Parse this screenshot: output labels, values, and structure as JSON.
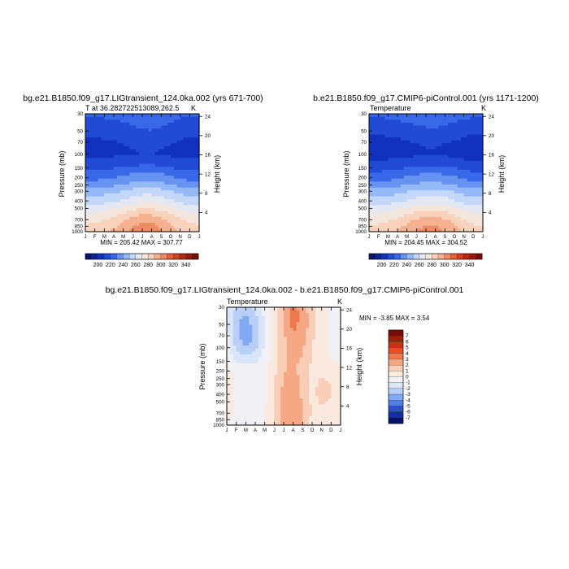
{
  "panels": [
    {
      "title": "bg.e21.B1850.f09_g17.LIGtransient_124.0ka.002 (yrs 671-700)",
      "var_label": "T at 36.282722513089,262.5",
      "unit": "K",
      "left_axis_label": "Pressure (mb)",
      "right_axis_label": "Height (km)",
      "minmax_text": "MIN = 205.42  MAX = 307.77",
      "colorbar_ticks": [
        "200",
        "220",
        "240",
        "260",
        "280",
        "300",
        "320",
        "340"
      ]
    },
    {
      "title": "b.e21.B1850.f09_g17.CMIP6-piControl.001 (yrs 1171-1200)",
      "var_label": "Temperature",
      "unit": "K",
      "left_axis_label": "Pressure (mb)",
      "right_axis_label": "Height (km)",
      "minmax_text": "MIN = 204.45  MAX = 304.52",
      "colorbar_ticks": [
        "200",
        "220",
        "240",
        "260",
        "280",
        "300",
        "320",
        "340"
      ]
    },
    {
      "title": "bg.e21.B1850.f09_g17.LIGtransient_124.0ka.002 - b.e21.B1850.f09_g17.CMIP6-piControl.001",
      "var_label": "Temperature",
      "unit": "K",
      "left_axis_label": "Pressure (mb)",
      "right_axis_label": "Height (km)",
      "minmax_text": "MIN =   -3.85  MAX =    3.54",
      "colorbar_ticks": [
        "7",
        "6",
        "5",
        "4",
        "3",
        "2",
        "1",
        "0",
        "-1",
        "-2",
        "-3",
        "-4",
        "-5",
        "-6",
        "-7"
      ]
    }
  ],
  "chart_data": [
    {
      "type": "heatmap",
      "title": "bg.e21.B1850.f09_g17.LIGtransient_124.0ka.002 (yrs 671-700)",
      "x_categories": [
        "J",
        "F",
        "M",
        "A",
        "M",
        "J",
        "J",
        "A",
        "S",
        "O",
        "N",
        "D",
        "J"
      ],
      "pressure_levels_mb": [
        30,
        50,
        70,
        100,
        150,
        200,
        250,
        300,
        400,
        500,
        700,
        850,
        1000
      ],
      "height_ticks_km": [
        24,
        20,
        16,
        12,
        8,
        4
      ],
      "min": 205.42,
      "max": 307.77,
      "colorbar": [
        200,
        220,
        240,
        260,
        280,
        300,
        320,
        340
      ],
      "values": [
        [
          222,
          222,
          223,
          224,
          226,
          228,
          230,
          231,
          229,
          226,
          223,
          222,
          222
        ],
        [
          215,
          215,
          216,
          217,
          219,
          221,
          223,
          224,
          222,
          219,
          216,
          215,
          215
        ],
        [
          211,
          211,
          212,
          213,
          214,
          216,
          218,
          218,
          217,
          214,
          212,
          211,
          211
        ],
        [
          208,
          208,
          209,
          209,
          210,
          212,
          213,
          213,
          212,
          210,
          209,
          208,
          208
        ],
        [
          207,
          207,
          207,
          208,
          208,
          209,
          210,
          210,
          209,
          208,
          207,
          207,
          207
        ],
        [
          212,
          212,
          213,
          214,
          215,
          216,
          217,
          217,
          216,
          214,
          213,
          212,
          212
        ],
        [
          222,
          222,
          223,
          225,
          227,
          229,
          230,
          230,
          229,
          226,
          224,
          222,
          222
        ],
        [
          232,
          232,
          233,
          235,
          237,
          240,
          241,
          241,
          240,
          237,
          234,
          232,
          232
        ],
        [
          246,
          246,
          247,
          249,
          252,
          255,
          257,
          257,
          255,
          252,
          248,
          246,
          246
        ],
        [
          256,
          256,
          258,
          260,
          263,
          267,
          269,
          269,
          267,
          263,
          259,
          257,
          256
        ],
        [
          268,
          269,
          271,
          274,
          278,
          283,
          286,
          285,
          282,
          277,
          272,
          269,
          268
        ],
        [
          278,
          279,
          282,
          285,
          290,
          296,
          300,
          299,
          295,
          289,
          283,
          279,
          278
        ],
        [
          284,
          285,
          288,
          292,
          297,
          303,
          307,
          306,
          301,
          295,
          289,
          285,
          284
        ]
      ]
    },
    {
      "type": "heatmap",
      "title": "b.e21.B1850.f09_g17.CMIP6-piControl.001 (yrs 1171-1200)",
      "x_categories": [
        "J",
        "F",
        "M",
        "A",
        "M",
        "J",
        "J",
        "A",
        "S",
        "O",
        "N",
        "D",
        "J"
      ],
      "pressure_levels_mb": [
        30,
        50,
        70,
        100,
        150,
        200,
        250,
        300,
        400,
        500,
        700,
        850,
        1000
      ],
      "height_ticks_km": [
        24,
        20,
        16,
        12,
        8,
        4
      ],
      "min": 204.45,
      "max": 304.52,
      "colorbar": [
        200,
        220,
        240,
        260,
        280,
        300,
        320,
        340
      ],
      "values": [
        [
          223,
          223,
          224,
          225,
          227,
          229,
          230,
          230,
          228,
          226,
          224,
          223,
          223
        ],
        [
          215,
          215,
          216,
          217,
          219,
          221,
          222,
          223,
          221,
          219,
          217,
          215,
          215
        ],
        [
          210,
          210,
          211,
          212,
          213,
          215,
          216,
          216,
          215,
          213,
          211,
          210,
          210
        ],
        [
          207,
          207,
          208,
          208,
          209,
          210,
          211,
          211,
          210,
          209,
          208,
          207,
          207
        ],
        [
          206,
          206,
          206,
          207,
          207,
          208,
          209,
          209,
          208,
          207,
          206,
          206,
          206
        ],
        [
          211,
          211,
          212,
          213,
          214,
          215,
          216,
          216,
          215,
          214,
          212,
          211,
          211
        ],
        [
          221,
          221,
          222,
          224,
          226,
          228,
          229,
          229,
          228,
          226,
          223,
          221,
          221
        ],
        [
          231,
          231,
          232,
          234,
          236,
          239,
          240,
          240,
          239,
          236,
          233,
          231,
          231
        ],
        [
          245,
          245,
          246,
          248,
          251,
          254,
          255,
          255,
          254,
          251,
          247,
          245,
          245
        ],
        [
          255,
          255,
          257,
          259,
          262,
          265,
          267,
          267,
          266,
          262,
          258,
          256,
          255
        ],
        [
          267,
          268,
          270,
          273,
          277,
          281,
          283,
          283,
          281,
          276,
          271,
          268,
          267
        ],
        [
          277,
          278,
          281,
          284,
          289,
          294,
          297,
          297,
          294,
          288,
          282,
          278,
          277
        ],
        [
          283,
          284,
          287,
          291,
          296,
          301,
          304,
          304,
          300,
          294,
          288,
          284,
          283
        ]
      ]
    },
    {
      "type": "heatmap",
      "title": "bg.e21.B1850.f09_g17.LIGtransient_124.0ka.002 - b.e21.B1850.f09_g17.CMIP6-piControl.001",
      "x_categories": [
        "J",
        "F",
        "M",
        "A",
        "M",
        "J",
        "J",
        "A",
        "S",
        "O",
        "N",
        "D",
        "J"
      ],
      "pressure_levels_mb": [
        30,
        50,
        70,
        100,
        150,
        200,
        250,
        300,
        400,
        500,
        700,
        850,
        1000
      ],
      "height_ticks_km": [
        24,
        20,
        16,
        12,
        8,
        4
      ],
      "min": -3.85,
      "max": 3.54,
      "colorbar": [
        -7,
        -6,
        -5,
        -4,
        -3,
        -2,
        -1,
        0,
        1,
        2,
        3,
        4,
        5,
        6,
        7
      ],
      "values": [
        [
          -0.8,
          -2.0,
          -2.4,
          -1.8,
          -0.6,
          0.6,
          2.0,
          3.2,
          2.6,
          1.2,
          0.4,
          -0.2,
          -0.8
        ],
        [
          -0.8,
          -2.6,
          -3.2,
          -2.4,
          -0.8,
          0.6,
          2.2,
          3.5,
          2.8,
          1.4,
          0.4,
          -0.2,
          -0.8
        ],
        [
          -0.8,
          -2.8,
          -3.6,
          -2.6,
          -1.0,
          0.4,
          2.0,
          3.2,
          2.6,
          1.4,
          0.3,
          -0.2,
          -0.8
        ],
        [
          -0.6,
          -2.6,
          -3.85,
          -2.8,
          -1.0,
          0.4,
          1.8,
          2.8,
          2.4,
          1.2,
          0.2,
          -0.2,
          -0.6
        ],
        [
          -0.5,
          -2.2,
          -3.0,
          -2.4,
          -0.8,
          0.4,
          1.8,
          2.6,
          2.2,
          1.0,
          0.2,
          -0.2,
          -0.5
        ],
        [
          -0.4,
          -1.4,
          -2.0,
          -1.6,
          -0.6,
          0.4,
          1.6,
          2.4,
          2.0,
          1.0,
          0.3,
          -0.1,
          -0.4
        ],
        [
          0.2,
          -0.6,
          -0.8,
          -0.8,
          -0.4,
          0.6,
          1.8,
          2.2,
          1.6,
          0.8,
          0.6,
          0.4,
          0.2
        ],
        [
          0.6,
          -0.4,
          -0.6,
          -0.6,
          -0.2,
          0.8,
          2.0,
          2.4,
          1.6,
          0.8,
          1.0,
          0.8,
          0.6
        ],
        [
          0.8,
          -0.4,
          -0.6,
          -0.6,
          -0.2,
          1.0,
          2.2,
          2.6,
          1.8,
          0.8,
          1.2,
          1.0,
          0.8
        ],
        [
          0.8,
          -0.4,
          -0.6,
          -0.6,
          -0.2,
          1.0,
          2.2,
          2.6,
          1.8,
          0.8,
          1.2,
          1.0,
          0.8
        ],
        [
          0.6,
          -0.4,
          -0.6,
          -0.6,
          -0.2,
          1.0,
          2.4,
          2.8,
          2.0,
          0.8,
          1.0,
          0.8,
          0.6
        ],
        [
          0.4,
          -0.4,
          -0.6,
          -0.4,
          -0.2,
          1.2,
          2.6,
          3.0,
          2.0,
          0.8,
          0.8,
          0.6,
          0.4
        ],
        [
          0.2,
          -0.6,
          -0.8,
          -0.4,
          0.0,
          1.2,
          2.6,
          3.0,
          1.8,
          0.8,
          0.6,
          0.4,
          0.2
        ]
      ]
    }
  ]
}
